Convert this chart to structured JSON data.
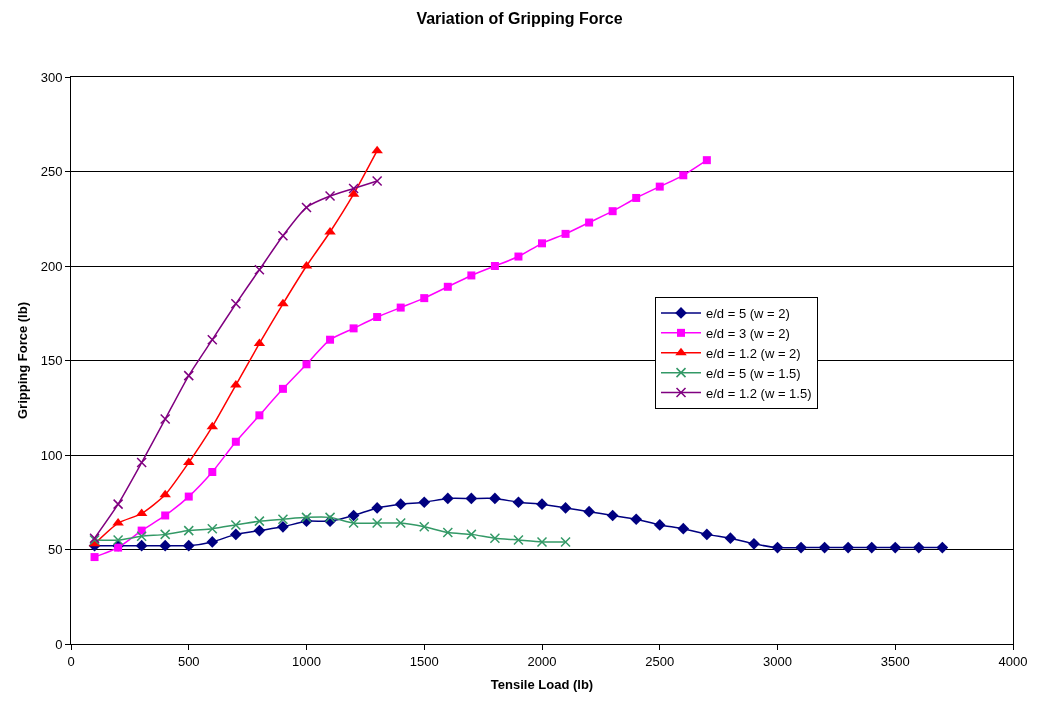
{
  "chart_data": {
    "type": "line",
    "title": "Variation of Gripping Force",
    "xlabel": "Tensile Load (lb)",
    "ylabel": "Gripping Force (lb)",
    "xlim": [
      0,
      4000
    ],
    "xticks": [
      0,
      500,
      1000,
      1500,
      2000,
      2500,
      3000,
      3500,
      4000
    ],
    "ylim": [
      0,
      300
    ],
    "yticks": [
      0,
      50,
      100,
      150,
      200,
      250,
      300
    ],
    "grid": "y",
    "legend": "right",
    "line_style": "solid",
    "series": [
      {
        "name": "e/d = 5 (w = 2)",
        "color": "#000080",
        "marker": "diamond",
        "x": [
          100,
          200,
          300,
          400,
          500,
          600,
          700,
          800,
          900,
          1000,
          1100,
          1200,
          1300,
          1400,
          1500,
          1600,
          1700,
          1800,
          1900,
          2000,
          2100,
          2200,
          2300,
          2400,
          2500,
          2600,
          2700,
          2800,
          2900,
          3000,
          3100,
          3200,
          3300,
          3400,
          3500,
          3600,
          3700
        ],
        "values": [
          52,
          52,
          52,
          52,
          52,
          54,
          58,
          60,
          62,
          65,
          65,
          68,
          72,
          74,
          75,
          77,
          77,
          77,
          75,
          74,
          72,
          70,
          68,
          66,
          63,
          61,
          58,
          56,
          53,
          51,
          51,
          51,
          51,
          51,
          51,
          51,
          51
        ]
      },
      {
        "name": "e/d = 3 (w = 2)",
        "color": "#ff00ff",
        "marker": "square",
        "x": [
          100,
          200,
          300,
          400,
          500,
          600,
          700,
          800,
          900,
          1000,
          1100,
          1200,
          1300,
          1400,
          1500,
          1600,
          1700,
          1800,
          1900,
          2000,
          2100,
          2200,
          2300,
          2400,
          2500,
          2600,
          2700
        ],
        "values": [
          46,
          51,
          60,
          68,
          78,
          91,
          107,
          121,
          135,
          148,
          161,
          167,
          173,
          178,
          183,
          189,
          195,
          200,
          205,
          212,
          217,
          223,
          229,
          236,
          242,
          248,
          256
        ]
      },
      {
        "name": "e/d = 1.2 (w = 2)",
        "color": "#ff0000",
        "marker": "triangle",
        "x": [
          100,
          200,
          300,
          400,
          500,
          600,
          700,
          800,
          900,
          1000,
          1100,
          1200,
          1300
        ],
        "values": [
          53,
          64,
          69,
          79,
          96,
          115,
          137,
          159,
          180,
          200,
          218,
          238,
          261
        ]
      },
      {
        "name": "e/d = 5 (w = 1.5)",
        "color": "#339966",
        "marker": "cross",
        "x": [
          100,
          200,
          300,
          400,
          500,
          600,
          700,
          800,
          900,
          1000,
          1100,
          1200,
          1300,
          1400,
          1500,
          1600,
          1700,
          1800,
          1900,
          2000,
          2100
        ],
        "values": [
          55,
          55,
          57,
          58,
          60,
          61,
          63,
          65,
          66,
          67,
          67,
          64,
          64,
          64,
          62,
          59,
          58,
          56,
          55,
          54,
          54
        ]
      },
      {
        "name": "e/d = 1.2 (w = 1.5)",
        "color": "#800080",
        "marker": "cross",
        "x": [
          100,
          200,
          300,
          400,
          500,
          600,
          700,
          800,
          900,
          1000,
          1100,
          1200,
          1300
        ],
        "values": [
          56,
          74,
          96,
          119,
          142,
          161,
          180,
          198,
          216,
          231,
          237,
          241,
          245
        ]
      }
    ]
  }
}
